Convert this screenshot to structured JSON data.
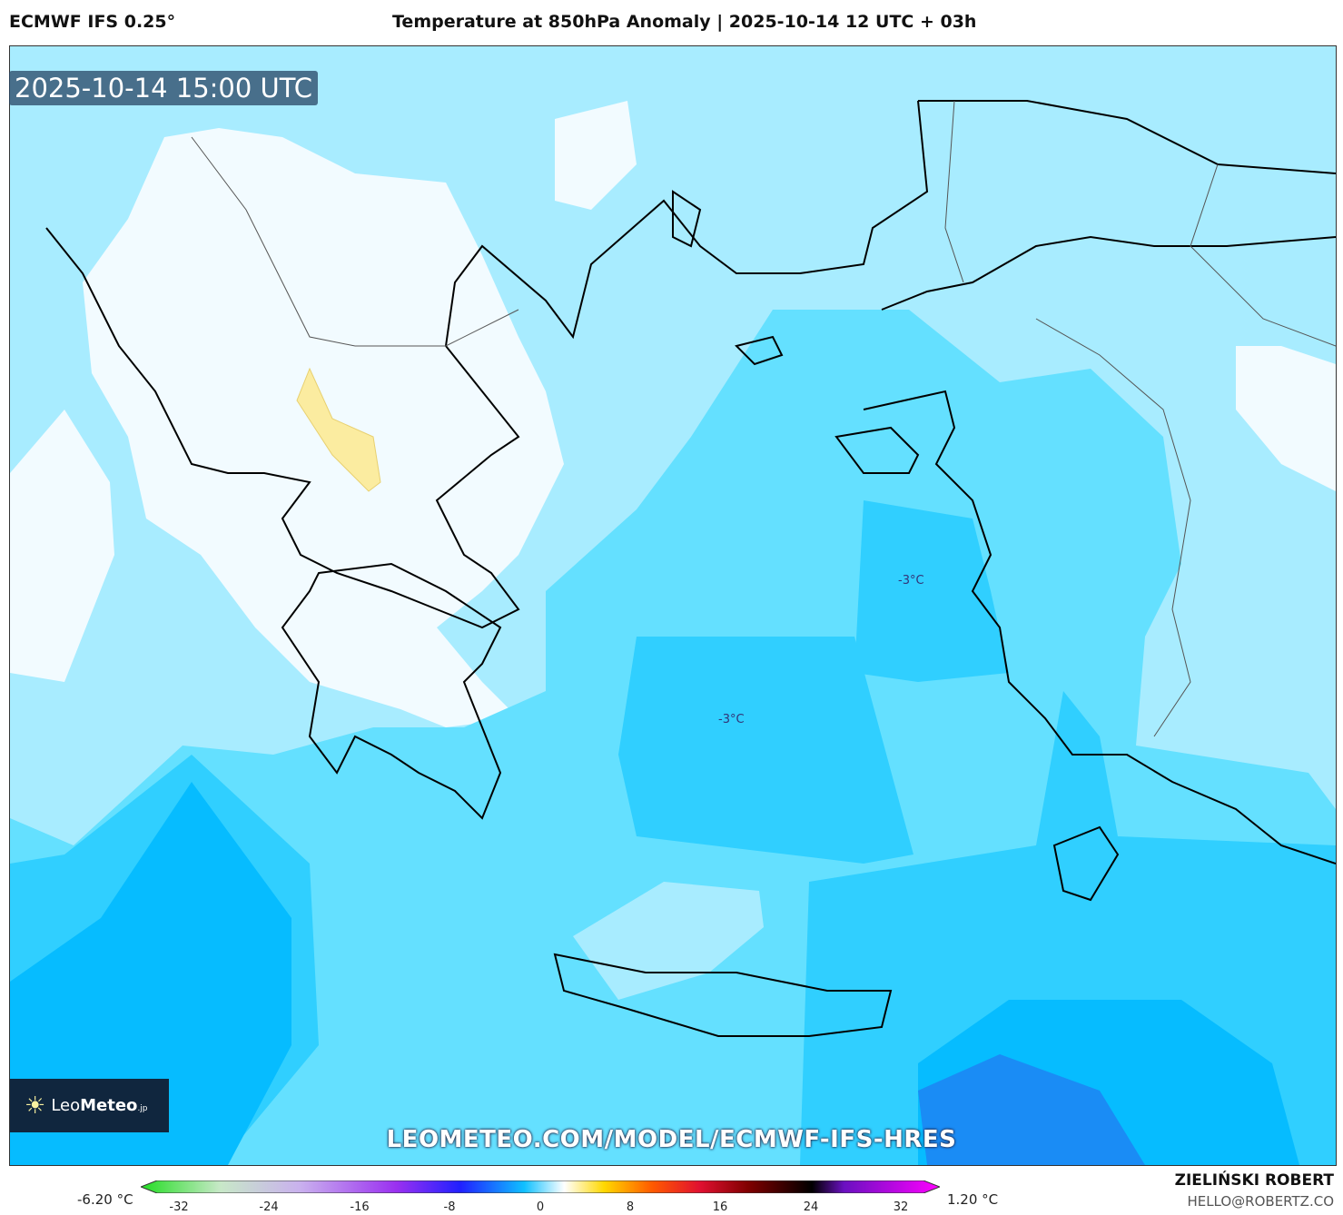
{
  "header": {
    "model": "ECMWF IFS 0.25°",
    "title": "Temperature at 850hPa Anomaly | 2025-10-14 12 UTC + 03h"
  },
  "map": {
    "valid_time": "2025-10-14 15:00 UTC",
    "contour_labels": [
      "-3°C",
      "-3°C"
    ],
    "url": "LEOMETEO.COM/MODEL/ECMWF-IFS-HRES",
    "colors": {
      "white": "#f2fbff",
      "light": "#a8ecff",
      "mid": "#64e0ff",
      "strong": "#30cfff",
      "deep": "#06bcff",
      "deepest": "#1a8cf5",
      "positive": "#fbeca0"
    }
  },
  "logo": {
    "text_light": "Leo",
    "text_bold": "Meteo",
    "suffix": ".jp"
  },
  "colorbar": {
    "min_label": "-6.20 °C",
    "max_label": "1.20 °C",
    "ticks": [
      "-32",
      "-24",
      "-16",
      "-8",
      "0",
      "8",
      "16",
      "24",
      "32"
    ]
  },
  "credit": {
    "author": "ZIELIŃSKI ROBERT",
    "email": "HELLO@ROBERTZ.CO"
  }
}
